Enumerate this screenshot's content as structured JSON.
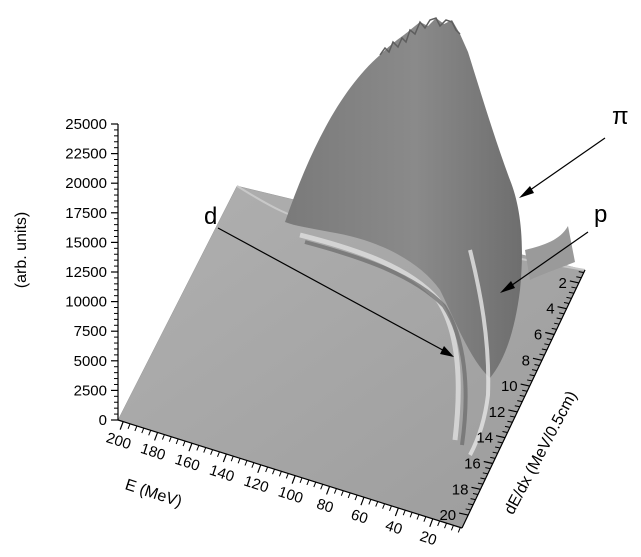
{
  "chart_data": {
    "type": "surface",
    "title": "",
    "zlabel": "(arb. units)",
    "xlabel": "E (MeV)",
    "ylabel": "dE/dx  (MeV/0.5cm)",
    "zlim": [
      0,
      25000
    ],
    "z_ticks": [
      "0",
      "2500",
      "5000",
      "7500",
      "10000",
      "12500",
      "15000",
      "17500",
      "20000",
      "22500",
      "25000"
    ],
    "x_ticks": [
      "200",
      "180",
      "160",
      "140",
      "120",
      "100",
      "80",
      "60",
      "40",
      "20"
    ],
    "y_ticks": [
      "2",
      "4",
      "6",
      "8",
      "10",
      "12",
      "14",
      "16",
      "18",
      "20"
    ],
    "annotations": [
      {
        "label": "π",
        "target": "pion band peak"
      },
      {
        "label": "p",
        "target": "proton band"
      },
      {
        "label": "d",
        "target": "deuteron band"
      }
    ],
    "surface_color": "#8c8c8c",
    "floor_color": "#a9a9a9"
  }
}
